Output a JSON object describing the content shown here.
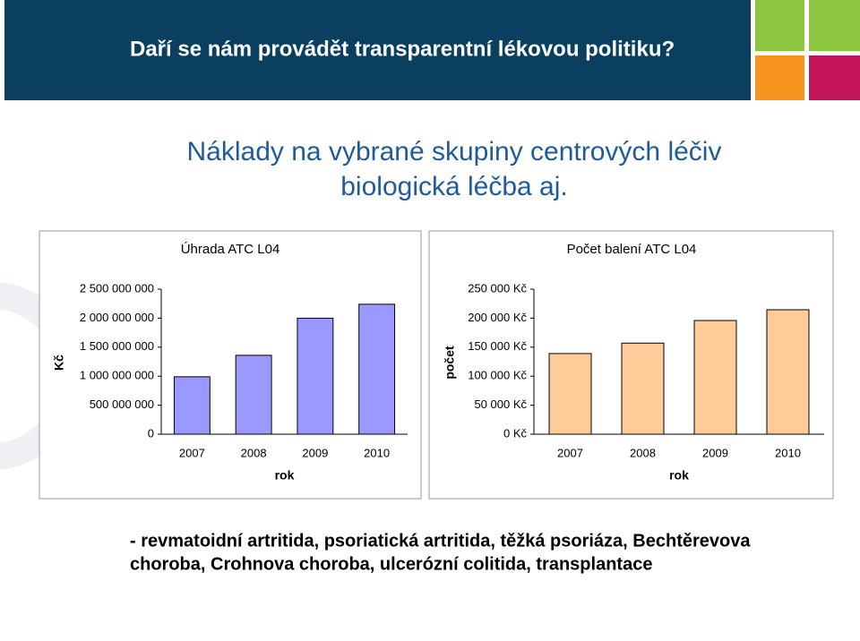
{
  "slide": {
    "title": "Daří se nám provádět transparentní lékovou politiku?",
    "heading": [
      "Náklady na vybrané skupiny centrových léčiv",
      "biologická léčba aj."
    ],
    "footer": [
      "- revmatoidní artritida, psoriatická artritida, těžká psoriáza, Bechtěrevova",
      "choroba, Crohnova choroba, ulcerózní colitida, transplantace"
    ]
  },
  "chart_data": [
    {
      "type": "bar",
      "title": "Úhrada ATC L04",
      "ylabel": "Kč",
      "xlabel": "rok",
      "categories": [
        "2007",
        "2008",
        "2009",
        "2010"
      ],
      "values": [
        990000000,
        1360000000,
        2000000000,
        2240000000
      ],
      "color": "#9999ff",
      "ylim": [
        0,
        2500000000
      ],
      "yticks": [
        0,
        {
          "value": 500000000,
          "label": "500 000 000"
        },
        {
          "value": 1000000000,
          "label": "1 000 000 000"
        },
        {
          "value": 1500000000,
          "label": "1 500 000 000"
        },
        {
          "value": 2000000000,
          "label": "2 000 000 000"
        },
        {
          "value": 2500000000,
          "label": "2 500 000 000"
        }
      ],
      "grid": false
    },
    {
      "type": "bar",
      "title": "Počet balení ATC L04",
      "ylabel": "počet",
      "xlabel": "rok",
      "categories": [
        "2007",
        "2008",
        "2009",
        "2010"
      ],
      "values": [
        139000,
        157000,
        196000,
        214500
      ],
      "color": "#ffcc99",
      "ylim": [
        0,
        250000
      ],
      "yticks": [
        {
          "value": 0,
          "label": "0 Kč"
        },
        {
          "value": 50000,
          "label": "50 000 Kč"
        },
        {
          "value": 100000,
          "label": "100 000 Kč"
        },
        {
          "value": 150000,
          "label": "150 000 Kč"
        },
        {
          "value": 200000,
          "label": "200 000 Kč"
        },
        {
          "value": 250000,
          "label": "250 000 Kč"
        }
      ],
      "grid": false
    }
  ]
}
